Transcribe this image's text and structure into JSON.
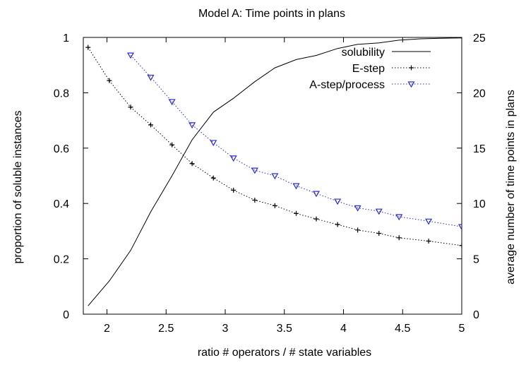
{
  "chart_data": {
    "type": "line",
    "title": "Model A: Time points in plans",
    "xlabel": "ratio # operators / # state variables",
    "ylabel": "proportion of soluble instances",
    "y2label": "average number of time points in plans",
    "xlim": [
      1.8,
      5
    ],
    "ylim": [
      0,
      1
    ],
    "y2lim": [
      0,
      25
    ],
    "xticks": [
      "2",
      "2.5",
      "3",
      "3.5",
      "4",
      "4.5",
      "5"
    ],
    "yticks": [
      "0",
      "0.2",
      "0.4",
      "0.6",
      "0.8",
      "1"
    ],
    "y2ticks": [
      "0",
      "5",
      "10",
      "15",
      "20",
      "25"
    ],
    "grid": false,
    "legend_position": "top-right",
    "series": [
      {
        "name": "solubility",
        "axis": "left",
        "color": "#000000",
        "style": "solid",
        "marker": "none",
        "x": [
          1.84,
          2.02,
          2.2,
          2.37,
          2.55,
          2.72,
          2.9,
          3.07,
          3.25,
          3.42,
          3.6,
          3.77,
          3.95,
          4.12,
          4.3,
          4.47,
          4.65,
          4.82,
          5.0
        ],
        "y": [
          0.03,
          0.12,
          0.23,
          0.37,
          0.5,
          0.63,
          0.73,
          0.78,
          0.84,
          0.89,
          0.92,
          0.935,
          0.96,
          0.975,
          0.98,
          0.99,
          0.995,
          0.997,
          0.998
        ]
      },
      {
        "name": "E-step",
        "axis": "right",
        "color": "#000000",
        "style": "dotted",
        "marker": "plus",
        "x": [
          1.84,
          2.02,
          2.2,
          2.37,
          2.55,
          2.72,
          2.9,
          3.07,
          3.25,
          3.42,
          3.6,
          3.77,
          3.95,
          4.12,
          4.3,
          4.47,
          4.72,
          5.0
        ],
        "y": [
          24.1,
          21.1,
          18.7,
          17.1,
          15.3,
          13.6,
          12.3,
          11.2,
          10.3,
          9.8,
          9.1,
          8.6,
          8.1,
          7.6,
          7.3,
          6.9,
          6.6,
          6.2
        ]
      },
      {
        "name": "A-step/process",
        "axis": "right",
        "color": "#2a2ad8",
        "style": "dotted",
        "marker": "triangle-down",
        "x": [
          2.2,
          2.37,
          2.55,
          2.72,
          2.9,
          3.07,
          3.25,
          3.42,
          3.6,
          3.77,
          3.95,
          4.12,
          4.3,
          4.47,
          4.72,
          5.0
        ],
        "y": [
          23.4,
          21.4,
          19.2,
          17.1,
          15.5,
          14.1,
          13.0,
          12.5,
          11.6,
          10.9,
          10.2,
          9.6,
          9.3,
          8.8,
          8.4,
          7.9
        ]
      }
    ]
  }
}
